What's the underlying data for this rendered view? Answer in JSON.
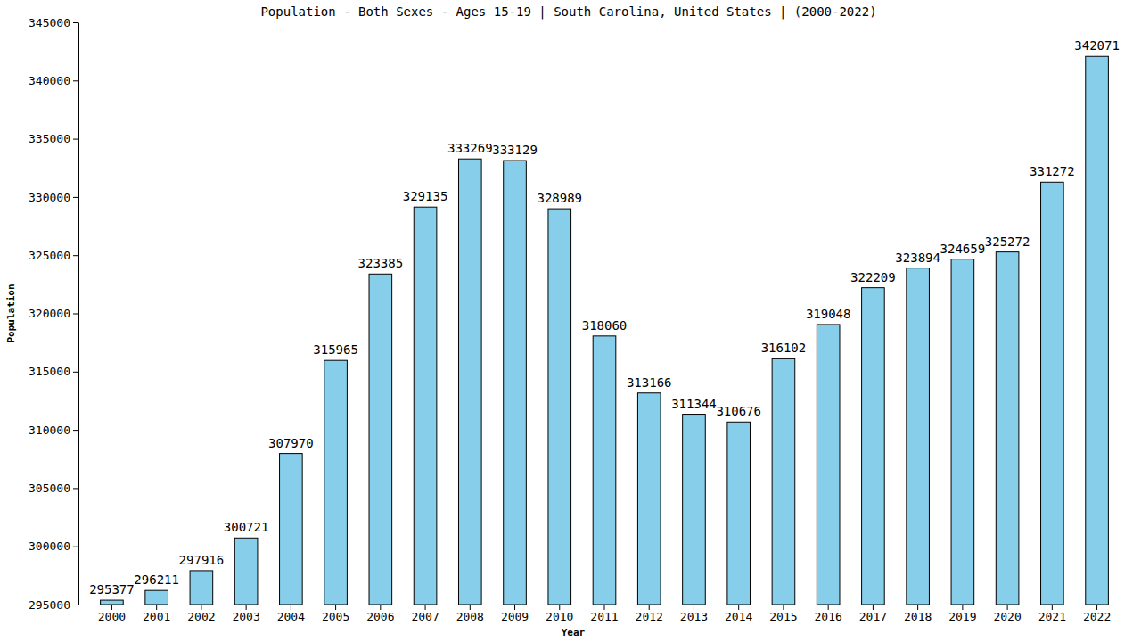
{
  "chart_data": {
    "type": "bar",
    "title": "Population - Both Sexes - Ages 15-19 | South Carolina, United States |  (2000-2022)",
    "x_label": "Year",
    "y_label": "Population",
    "categories": [
      "2000",
      "2001",
      "2002",
      "2003",
      "2004",
      "2005",
      "2006",
      "2007",
      "2008",
      "2009",
      "2010",
      "2011",
      "2012",
      "2013",
      "2014",
      "2015",
      "2016",
      "2017",
      "2018",
      "2019",
      "2020",
      "2021",
      "2022"
    ],
    "values": [
      295377,
      296211,
      297916,
      300721,
      307970,
      315965,
      323385,
      329135,
      333269,
      333129,
      328989,
      318060,
      313166,
      311344,
      310676,
      316102,
      319048,
      322209,
      323894,
      324659,
      325272,
      331272,
      342071
    ],
    "color": "#87ceeb",
    "ylim": [
      295000,
      345000
    ],
    "yticks": [
      295000,
      300000,
      305000,
      310000,
      315000,
      320000,
      325000,
      330000,
      335000,
      340000,
      345000
    ],
    "grid": false,
    "data_labels": true
  }
}
